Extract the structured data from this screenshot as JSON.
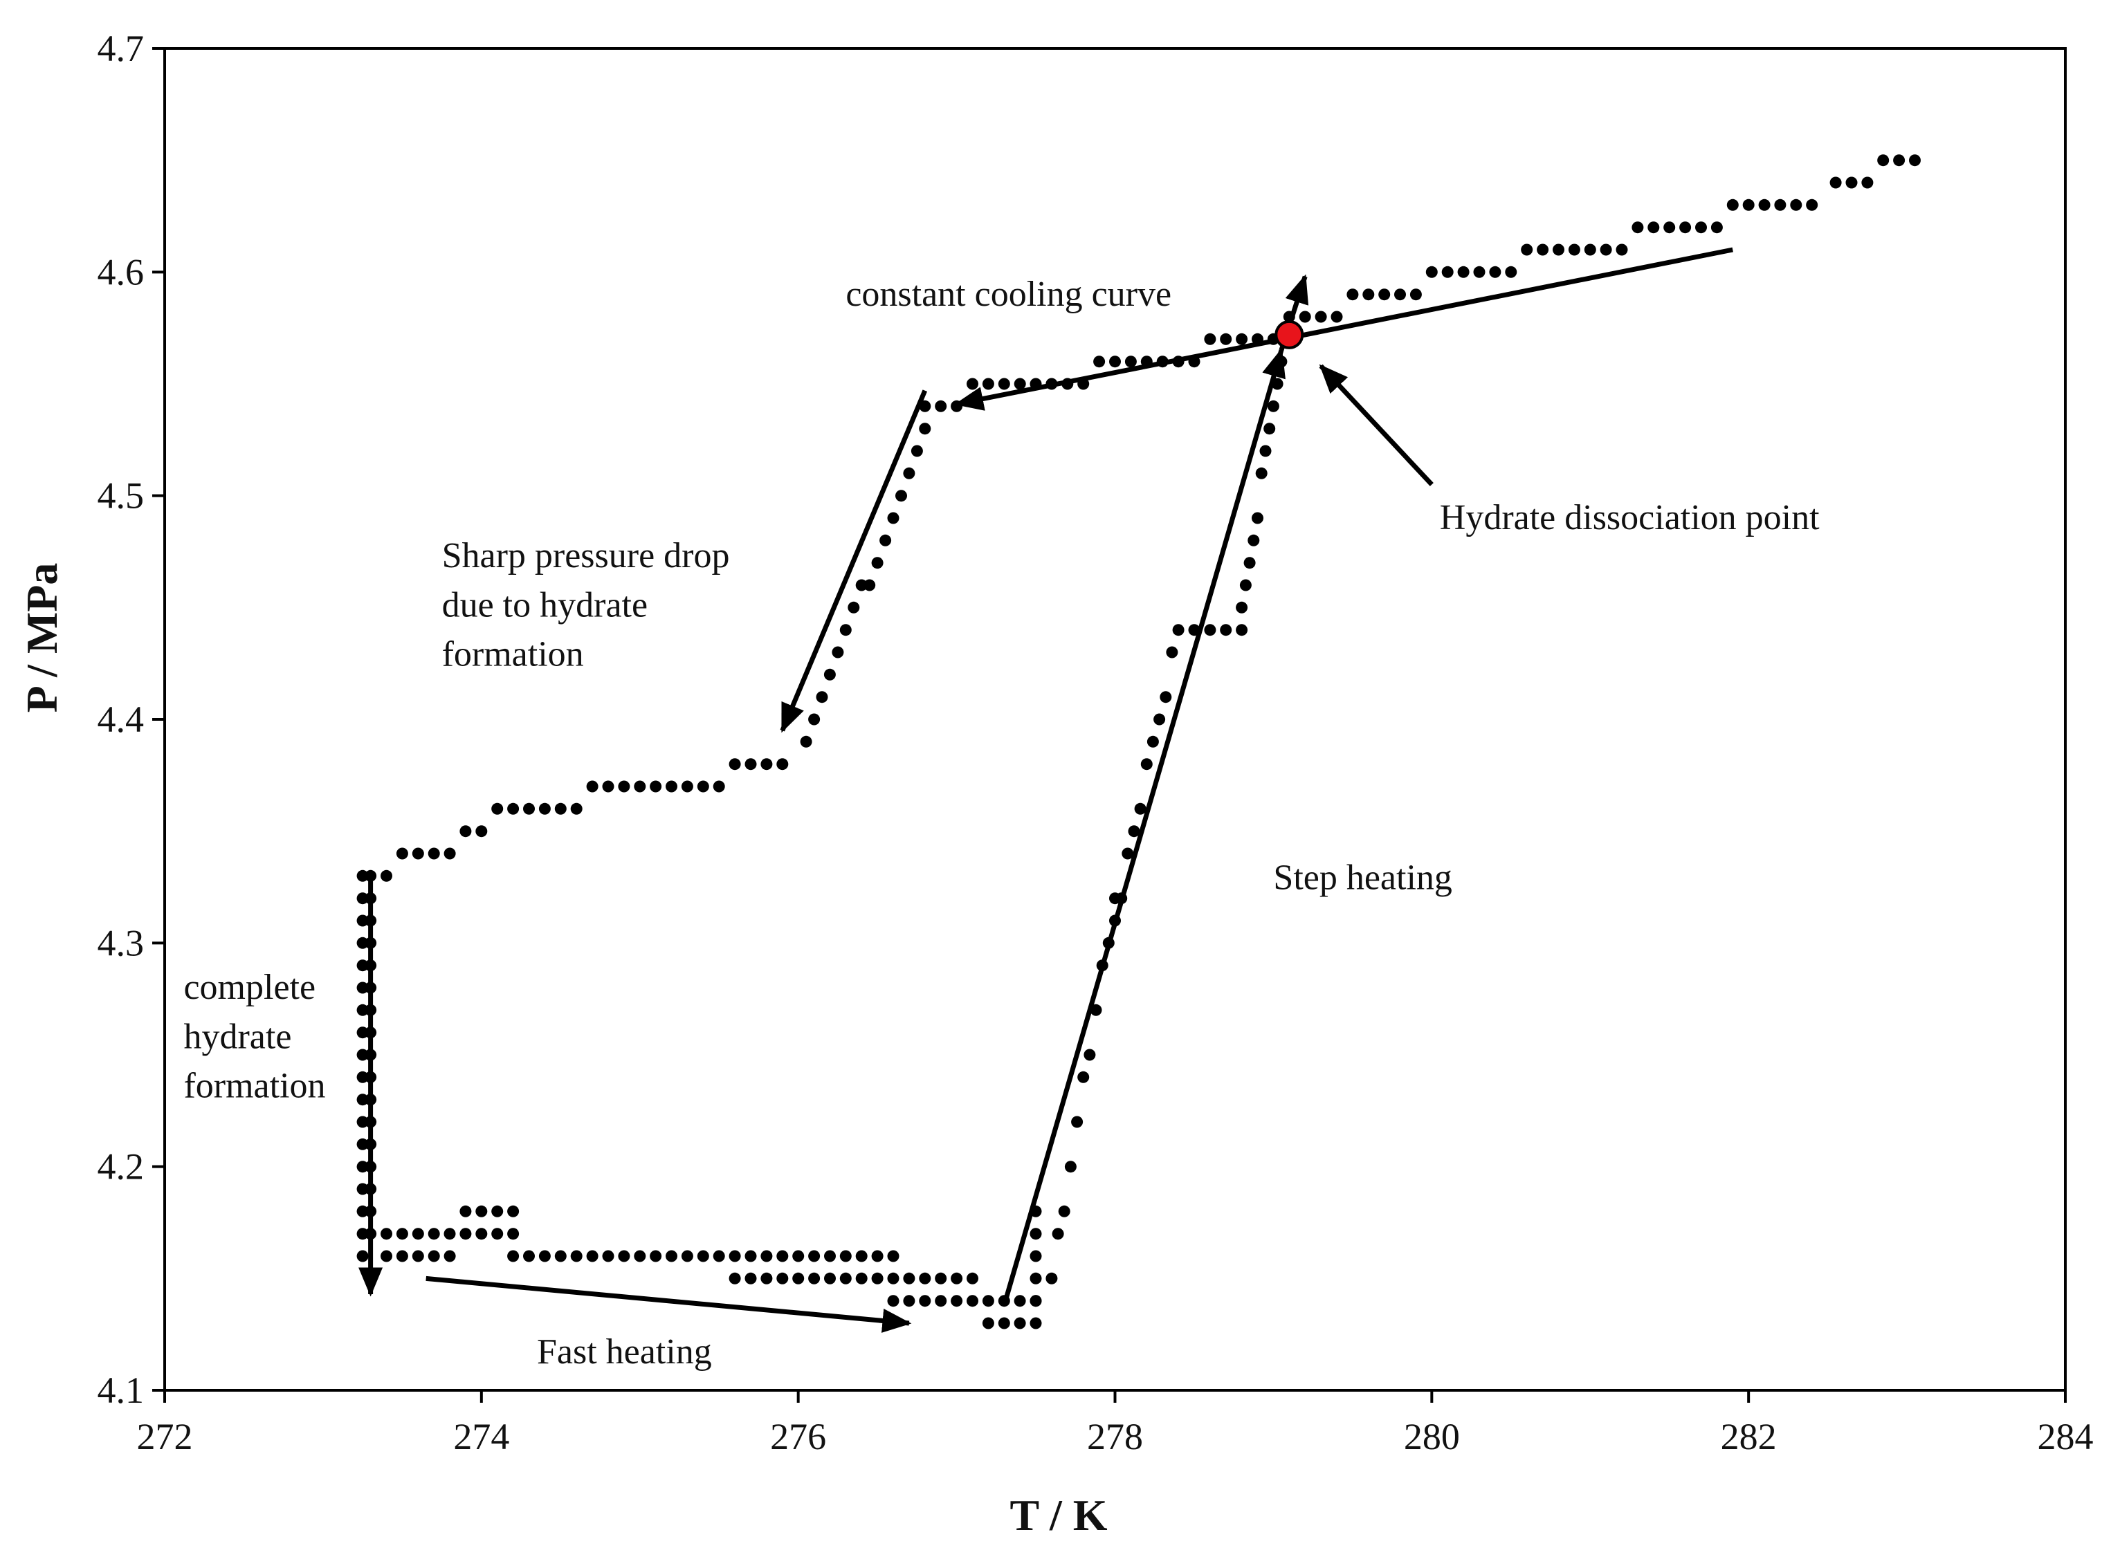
{
  "chart_data": {
    "type": "scatter",
    "title": "",
    "xlabel": "T / K",
    "ylabel": "P / MPa",
    "xlim": [
      272,
      284
    ],
    "ylim": [
      4.1,
      4.7
    ],
    "xticks": [
      "272",
      "274",
      "276",
      "278",
      "280",
      "282",
      "284"
    ],
    "yticks": [
      "4.1",
      "4.2",
      "4.3",
      "4.4",
      "4.5",
      "4.6",
      "4.7"
    ],
    "grid": false,
    "legend": "none",
    "point_color": "#000000",
    "highlight_color": "#e8141b",
    "series": [
      {
        "name": "",
        "segments": [
          {
            "x_start": 283.05,
            "x_end": 282.55,
            "step": 0.1,
            "y": 4.65,
            "y_end": 4.64
          },
          {
            "x_start": 282.4,
            "x_end": 281.3,
            "step": 0.1,
            "y": 4.63,
            "y_end": 4.62
          },
          {
            "x_start": 281.2,
            "x_end": 280.6,
            "step": 0.1,
            "y": 4.61
          },
          {
            "x_start": 280.5,
            "x_end": 280.0,
            "step": 0.1,
            "y": 4.6
          },
          {
            "x_start": 279.9,
            "x_end": 279.5,
            "step": 0.1,
            "y": 4.59
          },
          {
            "x_start": 279.4,
            "x_end": 279.1,
            "step": 0.1,
            "y": 4.58
          },
          {
            "x_start": 279.0,
            "x_end": 278.6,
            "step": 0.1,
            "y": 4.57
          },
          {
            "x_start": 278.5,
            "x_end": 277.9,
            "step": 0.1,
            "y": 4.56
          },
          {
            "x_start": 277.8,
            "x_end": 277.1,
            "step": 0.1,
            "y": 4.55
          },
          {
            "x_start": 277.0,
            "x_end": 276.8,
            "step": 0.1,
            "y": 4.54
          },
          {
            "x_start": 276.8,
            "x_end": 276.05,
            "step": -0.05,
            "y": 4.53,
            "y_end": 4.39
          },
          {
            "x_start": 275.9,
            "x_end": 275.6,
            "step": 0.1,
            "y": 4.38
          },
          {
            "x_start": 275.5,
            "x_end": 274.7,
            "step": 0.1,
            "y": 4.37
          },
          {
            "x_start": 274.6,
            "x_end": 274.1,
            "step": 0.1,
            "y": 4.36
          },
          {
            "x_start": 274.0,
            "x_end": 273.9,
            "step": 0.1,
            "y": 4.35
          },
          {
            "x_start": 273.8,
            "x_end": 273.5,
            "step": 0.1,
            "y": 4.34
          },
          {
            "x_start": 273.4,
            "x_end": 273.3,
            "step": 0.1,
            "y": 4.33
          },
          {
            "x_start": 273.25,
            "x_end": 273.25,
            "step": 0.1,
            "y": 4.33,
            "y_end": 4.16
          },
          {
            "x_start": 273.3,
            "x_end": 273.3,
            "step": 0.1,
            "y": 4.32,
            "y_end": 4.17
          },
          {
            "x_start": 273.4,
            "x_end": 274.2,
            "step": 0.1,
            "y": 4.17
          },
          {
            "x_start": 273.9,
            "x_end": 274.2,
            "step": 0.1,
            "y": 4.18
          },
          {
            "x_start": 273.4,
            "x_end": 273.8,
            "step": 0.1,
            "y": 4.16
          },
          {
            "x_start": 274.2,
            "x_end": 276.6,
            "step": 0.1,
            "y": 4.16
          },
          {
            "x_start": 275.6,
            "x_end": 277.1,
            "step": 0.1,
            "y": 4.15
          },
          {
            "x_start": 276.6,
            "x_end": 277.5,
            "step": 0.1,
            "y": 4.14
          },
          {
            "x_start": 277.2,
            "x_end": 277.5,
            "step": 0.1,
            "y": 4.13
          },
          {
            "x_start": 277.5,
            "x_end": 277.5,
            "step": 0.1,
            "y": 4.14,
            "y_end": 4.18
          },
          {
            "x_start": 277.6,
            "x_end": 278.0,
            "step": 0.04,
            "y": 4.15,
            "y_end": 4.32
          },
          {
            "x_start": 278.0,
            "x_end": 278.4,
            "step": 0.04,
            "y": 4.31,
            "y_end": 4.44
          },
          {
            "x_start": 278.5,
            "x_end": 278.8,
            "step": 0.1,
            "y": 4.44
          },
          {
            "x_start": 278.8,
            "x_end": 279.05,
            "step": 0.025,
            "y": 4.45,
            "y_end": 4.56
          }
        ]
      }
    ],
    "highlight_point": {
      "x": 279.1,
      "y": 4.572
    },
    "annotations": [
      {
        "text": "constant cooling curve",
        "x": 276.3,
        "y": 4.585
      },
      {
        "text": "Hydrate dissociation point",
        "x": 280.05,
        "y": 4.485
      },
      {
        "text": "Sharp pressure drop",
        "x": 273.75,
        "y": 4.468
      },
      {
        "text": "due to hydrate",
        "x": 273.75,
        "y": 4.446
      },
      {
        "text": "formation",
        "x": 273.75,
        "y": 4.424
      },
      {
        "text": "Step heating",
        "x": 279.0,
        "y": 4.324
      },
      {
        "text": "complete",
        "x": 272.12,
        "y": 4.275
      },
      {
        "text": "hydrate",
        "x": 272.12,
        "y": 4.253
      },
      {
        "text": "formation",
        "x": 272.12,
        "y": 4.231
      },
      {
        "text": "Fast heating",
        "x": 274.35,
        "y": 4.112
      }
    ],
    "arrows": [
      {
        "from": [
          281.9,
          4.61
        ],
        "to": [
          277.0,
          4.541
        ]
      },
      {
        "from": [
          276.8,
          4.547
        ],
        "to": [
          275.9,
          4.395
        ]
      },
      {
        "from": [
          273.3,
          4.33
        ],
        "to": [
          273.3,
          4.143
        ]
      },
      {
        "from": [
          273.65,
          4.15
        ],
        "to": [
          276.7,
          4.13
        ]
      },
      {
        "from": [
          277.3,
          4.138
        ],
        "to": [
          279.05,
          4.565
        ]
      },
      {
        "from": [
          279.05,
          4.565
        ],
        "to": [
          279.2,
          4.598
        ]
      },
      {
        "from": [
          280.0,
          4.505
        ],
        "to": [
          279.3,
          4.558
        ]
      }
    ]
  }
}
